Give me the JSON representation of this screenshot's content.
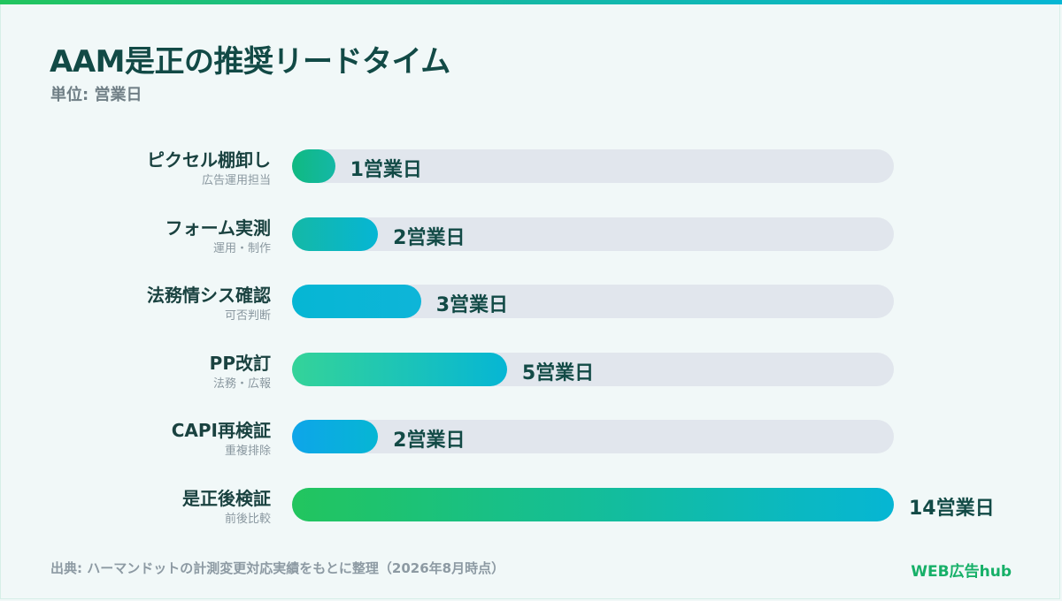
{
  "header": {
    "title": "AAM是正の推奨リードタイム",
    "unit": "単位: 営業日"
  },
  "chart_data": {
    "type": "bar",
    "orientation": "horizontal",
    "title": "AAM是正の推奨リードタイム",
    "xlim": [
      0,
      14
    ],
    "unit": "営業日",
    "value_suffix": "営業日",
    "grid": false,
    "categories": [
      "ピクセル棚卸し",
      "フォーム実測",
      "法務情シス確認",
      "PP改訂",
      "CAPI再検証",
      "是正後検証"
    ],
    "sublabels": [
      "広告運用担当",
      "運用・制作",
      "可否判断",
      "法務・広報",
      "重複排除",
      "前後比較"
    ],
    "values": [
      1,
      2,
      3,
      5,
      2,
      14
    ],
    "value_labels": [
      "1営業日",
      "2営業日",
      "3営業日",
      "5営業日",
      "2営業日",
      "14営業日"
    ],
    "colors": [
      [
        "#10b981",
        "#14b8a6"
      ],
      [
        "#14b8a6",
        "#06b6d4"
      ],
      [
        "#06b6d4",
        "#0eb5d8"
      ],
      [
        "#34d399",
        "#06b6d4"
      ],
      [
        "#0ea5e9",
        "#06b6d4"
      ],
      [
        "#22c55e",
        "#06b6d4"
      ]
    ]
  },
  "footer": {
    "source": "出典: ハーマンドットの計測変更対応実績をもとに整理（2026年8月時点）",
    "brand": "WEB広告hub"
  }
}
